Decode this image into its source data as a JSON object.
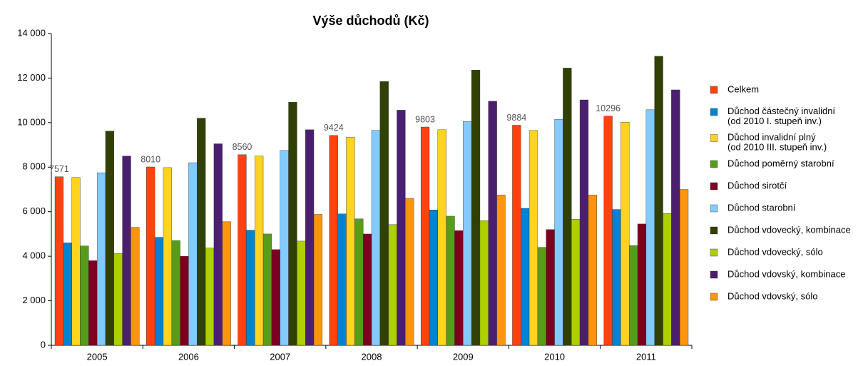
{
  "chart_data": {
    "type": "bar",
    "title": "Výše důchodů (Kč)",
    "categories": [
      "2005",
      "2006",
      "2007",
      "2008",
      "2009",
      "2010",
      "2011"
    ],
    "series": [
      {
        "name": "Celkem",
        "color": "#ff420e",
        "show_values": true,
        "values": [
          7571,
          8010,
          8560,
          9424,
          9803,
          9884,
          10296
        ]
      },
      {
        "name": "Důchod částečný invalidní\n(od 2010 I. stupeň inv.)",
        "color": "#0084d1",
        "values": [
          4600,
          4850,
          5170,
          5900,
          6080,
          6150,
          6100
        ]
      },
      {
        "name": "Důchod invalidní plný\n(od 2010 III. stupeň inv.)",
        "color": "#ffd320",
        "values": [
          7540,
          7980,
          8500,
          9350,
          9680,
          9650,
          10020
        ]
      },
      {
        "name": "Důchod poměrný starobní",
        "color": "#579d1c",
        "values": [
          4460,
          4700,
          5000,
          5680,
          5800,
          4400,
          4480
        ]
      },
      {
        "name": "Důchod sirotčí",
        "color": "#7e0021",
        "values": [
          3800,
          4000,
          4300,
          5000,
          5150,
          5200,
          5450
        ]
      },
      {
        "name": "Důchod starobní",
        "color": "#83caff",
        "values": [
          7750,
          8200,
          8750,
          9650,
          10050,
          10150,
          10580
        ]
      },
      {
        "name": "Důchod vdovecký, kombinace",
        "color": "#314004",
        "values": [
          9620,
          10200,
          10920,
          11850,
          12360,
          12450,
          12980
        ]
      },
      {
        "name": "Důchod vdovecký, sólo",
        "color": "#aecf00",
        "values": [
          4130,
          4370,
          4680,
          5420,
          5600,
          5660,
          5920
        ]
      },
      {
        "name": "Důchod vdovský, kombinace",
        "color": "#4b1f6f",
        "values": [
          8500,
          9050,
          9680,
          10560,
          10960,
          11020,
          11470
        ]
      },
      {
        "name": "Důchod vdovský, sólo",
        "color": "#ff950e",
        "values": [
          5300,
          5550,
          5880,
          6600,
          6750,
          6750,
          7000
        ]
      }
    ],
    "ylim": [
      0,
      14000
    ],
    "yticks": [
      0,
      {
        "value": 2000,
        "label": "2 000"
      },
      {
        "value": 4000,
        "label": "4 000"
      },
      {
        "value": 6000,
        "label": "6 000"
      },
      {
        "value": 8000,
        "label": "8 000"
      },
      {
        "value": 10000,
        "label": "10 000"
      },
      {
        "value": 12000,
        "label": "12 000"
      },
      {
        "value": 14000,
        "label": "14 000"
      }
    ],
    "grid": false,
    "legend": "right"
  }
}
